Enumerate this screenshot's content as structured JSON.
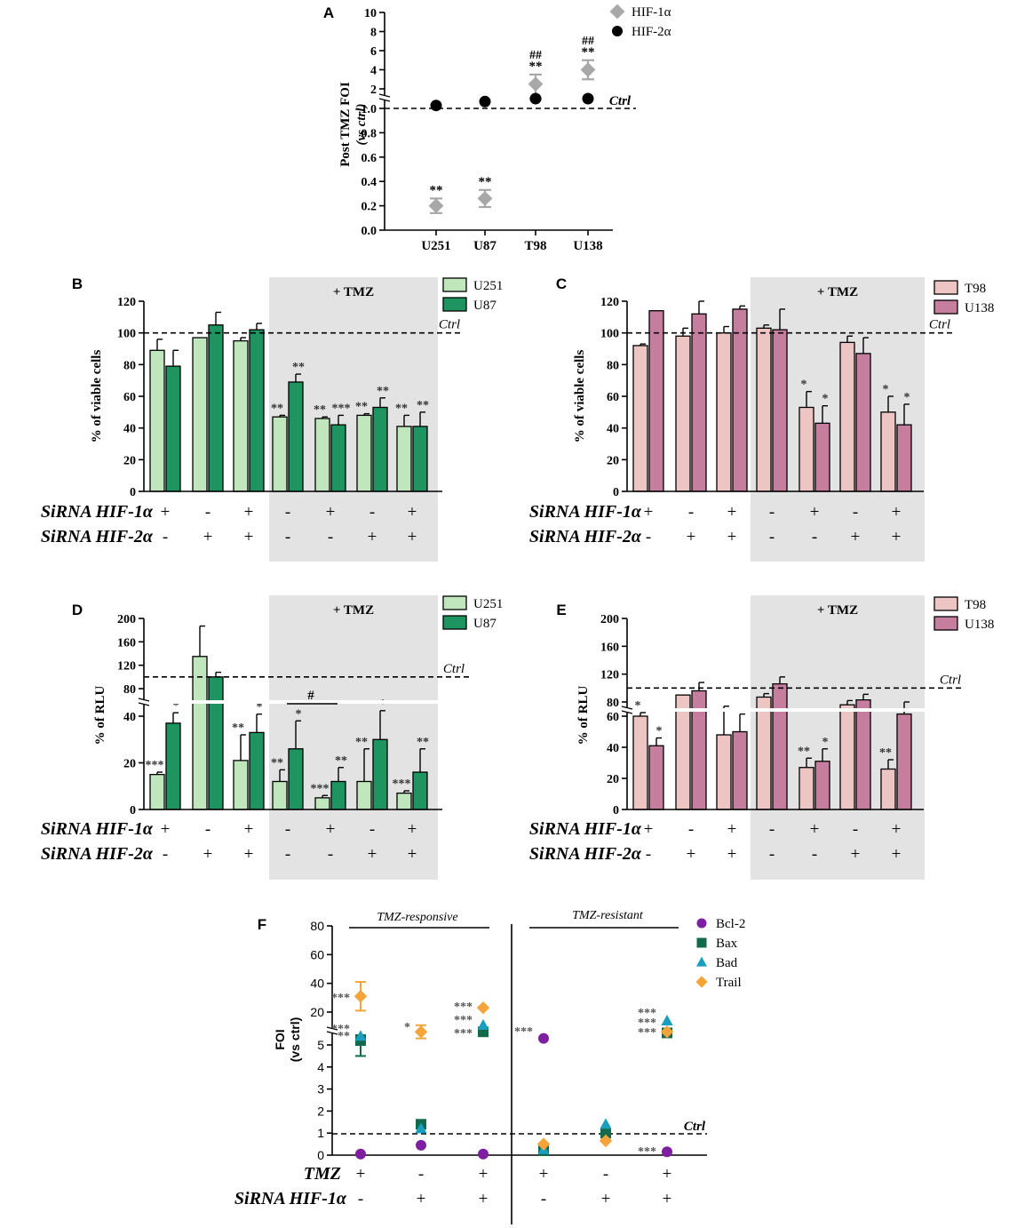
{
  "colors": {
    "u251": "#bfe6bc",
    "u87": "#1e9460",
    "t98": "#edc6c4",
    "u138": "#c67e9f",
    "hif1a": "#a8a8a8",
    "hif2a": "#000000",
    "bcl2": "#7d1fa0",
    "bax": "#136a4a",
    "bad": "#1a9ec0",
    "trail": "#f5a43a",
    "tmz_shade": "#e3e3e3"
  },
  "chart_data": [
    {
      "panel": "A",
      "type": "scatter",
      "ylabel": "Post TMZ FOI",
      "ylabel2": "(vs ctrl)",
      "categories": [
        "U251",
        "U87",
        "T98",
        "U138"
      ],
      "yticks_lower": [
        "0.0",
        "0.2",
        "0.4",
        "0.6",
        "0.8",
        "1.0"
      ],
      "yticks_upper": [
        "2",
        "4",
        "6",
        "8",
        "10"
      ],
      "ctrl_label": "Ctrl",
      "series": [
        {
          "name": "HIF-1α",
          "marker": "diamond",
          "values": [
            0.2,
            0.26,
            2.5,
            4.0
          ],
          "errors": [
            0.06,
            0.07,
            1.0,
            1.0
          ],
          "stars": [
            "**",
            "**",
            "**",
            "**"
          ],
          "hashes": [
            "",
            "",
            "##",
            "##"
          ]
        },
        {
          "name": "HIF-2α",
          "marker": "circle",
          "values": [
            1.15,
            1.35,
            1.5,
            1.5
          ]
        }
      ]
    },
    {
      "panel": "B",
      "type": "bar",
      "ylabel": "% of viable cells",
      "yticks": [
        "0",
        "20",
        "40",
        "60",
        "80",
        "100",
        "120"
      ],
      "ymax": 120,
      "ctrl_label": "Ctrl",
      "tmz_label": "+ TMZ",
      "row1_label": "SiRNA HIF-1α",
      "row2_label": "SiRNA HIF-2α",
      "row1": [
        "+",
        "-",
        "+",
        "-",
        "+",
        "-",
        "+"
      ],
      "row2": [
        "-",
        "+",
        "+",
        "-",
        "-",
        "+",
        "+"
      ],
      "series": [
        {
          "name": "U251",
          "values": [
            89,
            97,
            95,
            47,
            46,
            48,
            41
          ],
          "errors": [
            7,
            0,
            2,
            1,
            1,
            1,
            7
          ],
          "labels": [
            "",
            "",
            "",
            "**",
            "**",
            "**",
            "**"
          ]
        },
        {
          "name": "U87",
          "values": [
            79,
            105,
            102,
            69,
            42,
            53,
            41
          ],
          "errors": [
            10,
            8,
            4,
            5,
            6,
            6,
            9
          ],
          "labels": [
            "",
            "",
            "",
            "**",
            "***",
            "**",
            "**"
          ]
        }
      ]
    },
    {
      "panel": "C",
      "type": "bar",
      "ylabel": "% of viable cells",
      "yticks": [
        "0",
        "20",
        "40",
        "60",
        "80",
        "100",
        "120"
      ],
      "ymax": 120,
      "ctrl_label": "Ctrl",
      "tmz_label": "+ TMZ",
      "row1_label": "SiRNA HIF-1α",
      "row2_label": "SiRNA HIF-2α",
      "row1": [
        "+",
        "-",
        "+",
        "-",
        "+",
        "-",
        "+"
      ],
      "row2": [
        "-",
        "+",
        "+",
        "-",
        "-",
        "+",
        "+"
      ],
      "series": [
        {
          "name": "T98",
          "values": [
            92,
            98,
            100,
            103,
            53,
            94,
            50
          ],
          "errors": [
            1,
            5,
            4,
            2,
            10,
            4,
            10
          ],
          "labels": [
            "",
            "",
            "",
            "",
            "*",
            "",
            "*"
          ]
        },
        {
          "name": "U138",
          "values": [
            114,
            112,
            115,
            102,
            43,
            87,
            42
          ],
          "errors": [
            0,
            8,
            2,
            13,
            11,
            10,
            13
          ],
          "labels": [
            "",
            "",
            "",
            "",
            "*",
            "",
            "*"
          ]
        }
      ]
    },
    {
      "panel": "D",
      "type": "bar",
      "ylabel": "% of RLU",
      "yticks_lower": [
        "0",
        "20",
        "40"
      ],
      "yticks_upper": [
        "80",
        "120",
        "160",
        "200"
      ],
      "ctrl_label": "Ctrl",
      "tmz_label": "+ TMZ",
      "hash_label": "#",
      "row1_label": "SiRNA HIF-1α",
      "row2_label": "SiRNA HIF-2α",
      "row1": [
        "+",
        "-",
        "+",
        "-",
        "+",
        "-",
        "+"
      ],
      "row2": [
        "-",
        "+",
        "+",
        "-",
        "-",
        "+",
        "+"
      ],
      "series": [
        {
          "name": "U251",
          "values": [
            15,
            135,
            21,
            12,
            5,
            12,
            7
          ],
          "errors": [
            1,
            52,
            11,
            5,
            1,
            14,
            1
          ],
          "labels": [
            "***",
            "",
            "**",
            "**",
            "***",
            "**",
            "***"
          ]
        },
        {
          "name": "U87",
          "values": [
            37,
            100,
            33,
            26,
            12,
            30,
            16
          ],
          "errors": [
            8,
            8,
            10,
            12,
            6,
            18,
            10
          ],
          "labels": [
            "*",
            "",
            "*",
            "*",
            "**",
            "*",
            "**"
          ]
        }
      ]
    },
    {
      "panel": "E",
      "type": "bar",
      "ylabel": "% of RLU",
      "yticks_lower": [
        "0",
        "20",
        "40",
        "60"
      ],
      "yticks_upper": [
        "80",
        "120",
        "160",
        "200"
      ],
      "ctrl_label": "Ctrl",
      "tmz_label": "+ TMZ",
      "row1_label": "SiRNA HIF-1α",
      "row2_label": "SiRNA HIF-2α",
      "row1": [
        "+",
        "-",
        "+",
        "-",
        "+",
        "-",
        "+"
      ],
      "row2": [
        "-",
        "+",
        "+",
        "-",
        "-",
        "+",
        "+"
      ],
      "series": [
        {
          "name": "T98",
          "values": [
            60,
            90,
            48,
            87,
            27,
            76,
            26
          ],
          "errors": [
            5,
            0,
            26,
            5,
            6,
            6,
            6
          ],
          "labels": [
            "*",
            "",
            "",
            "",
            "**",
            "",
            "**"
          ]
        },
        {
          "name": "U138",
          "values": [
            41,
            96,
            50,
            106,
            31,
            83,
            63
          ],
          "errors": [
            5,
            12,
            13,
            10,
            8,
            8,
            17
          ],
          "labels": [
            "*",
            "",
            "",
            "",
            "*",
            "",
            ""
          ]
        }
      ]
    },
    {
      "panel": "F",
      "type": "scatter",
      "ylabel": "FOI",
      "ylabel2": "(vs ctrl)",
      "yticks_lower": [
        "0",
        "1",
        "2",
        "3",
        "4",
        "5"
      ],
      "yticks_upper": [
        "20",
        "40",
        "60",
        "80"
      ],
      "ctrl_label": "Ctrl",
      "group_labels": [
        "TMZ-responsive",
        "TMZ-resistant"
      ],
      "row1_label": "TMZ",
      "row2_label": "SiRNA HIF-1α",
      "row1": [
        "+",
        "-",
        "+",
        "+",
        "-",
        "+"
      ],
      "row2": [
        "-",
        "+",
        "+",
        "-",
        "+",
        "+"
      ],
      "series": [
        {
          "name": "Bcl-2",
          "marker": "circle",
          "values": [
            0.05,
            0.45,
            0.05,
            8,
            1.1,
            0.15
          ]
        },
        {
          "name": "Bax",
          "marker": "square",
          "values": [
            7,
            1.4,
            11,
            0.2,
            1.0,
            10.5
          ]
        },
        {
          "name": "Bad",
          "marker": "triangle",
          "values": [
            9,
            1.2,
            14,
            0.25,
            1.4,
            16
          ]
        },
        {
          "name": "Trail",
          "marker": "diamond",
          "values": [
            31,
            11,
            23,
            0.5,
            0.65,
            11
          ]
        }
      ],
      "star_groups": [
        {
          "group": 0,
          "labels": [
            "***",
            "***",
            "**"
          ]
        },
        {
          "group": 1,
          "labels": [
            "*"
          ]
        },
        {
          "group": 2,
          "labels": [
            "***",
            "***",
            "***"
          ]
        },
        {
          "group": 3,
          "labels": [
            "***"
          ]
        },
        {
          "group": 5,
          "labels": [
            "***",
            "***",
            "***"
          ]
        },
        {
          "group": 5,
          "labels": [
            "***"
          ]
        }
      ]
    }
  ]
}
